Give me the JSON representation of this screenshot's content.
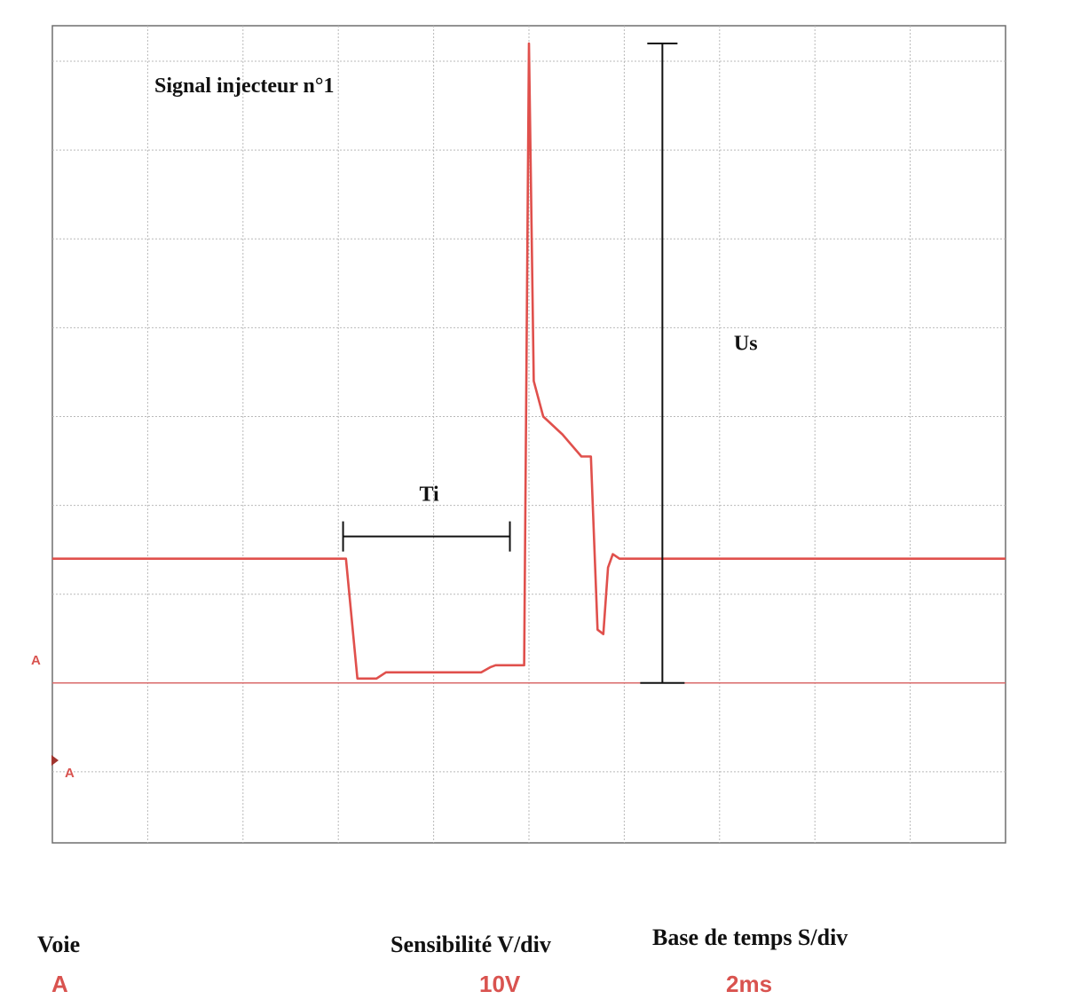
{
  "chart_data": {
    "type": "line",
    "title": "Signal injecteur n°1",
    "xlim": [
      0,
      10
    ],
    "ylim": [
      -1.8,
      7.4
    ],
    "grid": true,
    "series_color": "#e0504c",
    "reference_color": "#d96a6a",
    "annotation_color": "#111111",
    "series": [
      {
        "x": [
          0,
          3.08,
          3.2,
          3.4,
          3.5,
          4.5,
          4.6,
          4.65,
          4.7,
          4.95,
          5.0,
          5.05,
          5.15,
          5.2,
          5.3,
          5.35,
          5.55,
          5.65,
          5.72,
          5.78,
          5.83,
          5.88,
          5.95,
          10
        ],
        "y": [
          1.4,
          1.4,
          0.05,
          0.05,
          0.12,
          0.12,
          0.18,
          0.2,
          0.2,
          0.2,
          7.2,
          3.4,
          3.0,
          2.95,
          2.85,
          2.8,
          2.55,
          2.55,
          0.6,
          0.55,
          1.3,
          1.45,
          1.4,
          1.4
        ]
      }
    ],
    "marker_left": "A",
    "marker_right": "A",
    "annotations": [
      {
        "label": "Ti",
        "x_start": 3.05,
        "x_end": 4.8,
        "y": 1.65,
        "label_x": 3.85,
        "label_y": 2.05
      },
      {
        "label": "Us",
        "x": 6.4,
        "y_start": 0.0,
        "y_end": 7.2,
        "label_x": 7.15,
        "label_y": 3.75
      }
    ]
  },
  "footer": {
    "voie_label": "Voie",
    "voie_value": "A",
    "sens_label": "Sensibilité V/div",
    "sens_value": "10V",
    "base_label": "Base de temps S/div",
    "base_value": "2ms"
  }
}
